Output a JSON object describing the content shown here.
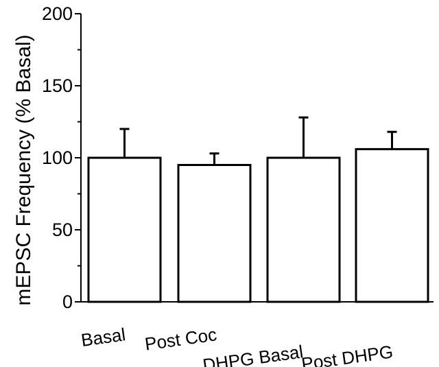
{
  "chart_data": {
    "type": "bar",
    "title": "",
    "xlabel": "",
    "ylabel": "mEPSC Frequency (% Basal)",
    "categories": [
      "Basal",
      "Post Coc",
      "DHPG Basal",
      "Post DHPG"
    ],
    "values": [
      100,
      95,
      100,
      106
    ],
    "error_upper": [
      20,
      8,
      28,
      12
    ],
    "ylim": [
      0,
      200
    ],
    "yticks": [
      0,
      50,
      100,
      150,
      200
    ],
    "grid": false,
    "legend": "none",
    "bar_fill": "#ffffff",
    "bar_stroke": "#000000"
  }
}
